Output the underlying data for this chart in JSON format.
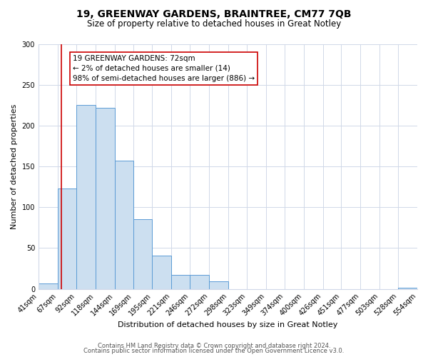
{
  "title": "19, GREENWAY GARDENS, BRAINTREE, CM77 7QB",
  "subtitle": "Size of property relative to detached houses in Great Notley",
  "xlabel": "Distribution of detached houses by size in Great Notley",
  "ylabel": "Number of detached properties",
  "footer_line1": "Contains HM Land Registry data © Crown copyright and database right 2024.",
  "footer_line2": "Contains public sector information licensed under the Open Government Licence v3.0.",
  "bin_edges": [
    41,
    67,
    92,
    118,
    144,
    169,
    195,
    221,
    246,
    272,
    298,
    323,
    349,
    374,
    400,
    426,
    451,
    477,
    503,
    528,
    554
  ],
  "bin_labels": [
    "41sqm",
    "67sqm",
    "92sqm",
    "118sqm",
    "144sqm",
    "169sqm",
    "195sqm",
    "221sqm",
    "246sqm",
    "272sqm",
    "298sqm",
    "323sqm",
    "349sqm",
    "374sqm",
    "400sqm",
    "426sqm",
    "451sqm",
    "477sqm",
    "503sqm",
    "528sqm",
    "554sqm"
  ],
  "counts": [
    7,
    123,
    225,
    222,
    157,
    85,
    41,
    17,
    17,
    9,
    0,
    0,
    0,
    0,
    0,
    0,
    0,
    0,
    0,
    1
  ],
  "bar_color": "#ccdff0",
  "bar_edge_color": "#5b9bd5",
  "ylim": [
    0,
    300
  ],
  "yticks": [
    0,
    50,
    100,
    150,
    200,
    250,
    300
  ],
  "property_line_x": 72,
  "property_line_color": "#cc0000",
  "annotation_line1": "19 GREENWAY GARDENS: 72sqm",
  "annotation_line2": "← 2% of detached houses are smaller (14)",
  "annotation_line3": "98% of semi-detached houses are larger (886) →",
  "annotation_fontsize": 7.5,
  "background_color": "#ffffff",
  "grid_color": "#d0d8e8",
  "title_fontsize": 10,
  "subtitle_fontsize": 8.5,
  "xlabel_fontsize": 8,
  "ylabel_fontsize": 8,
  "tick_fontsize": 7,
  "footer_fontsize": 6
}
